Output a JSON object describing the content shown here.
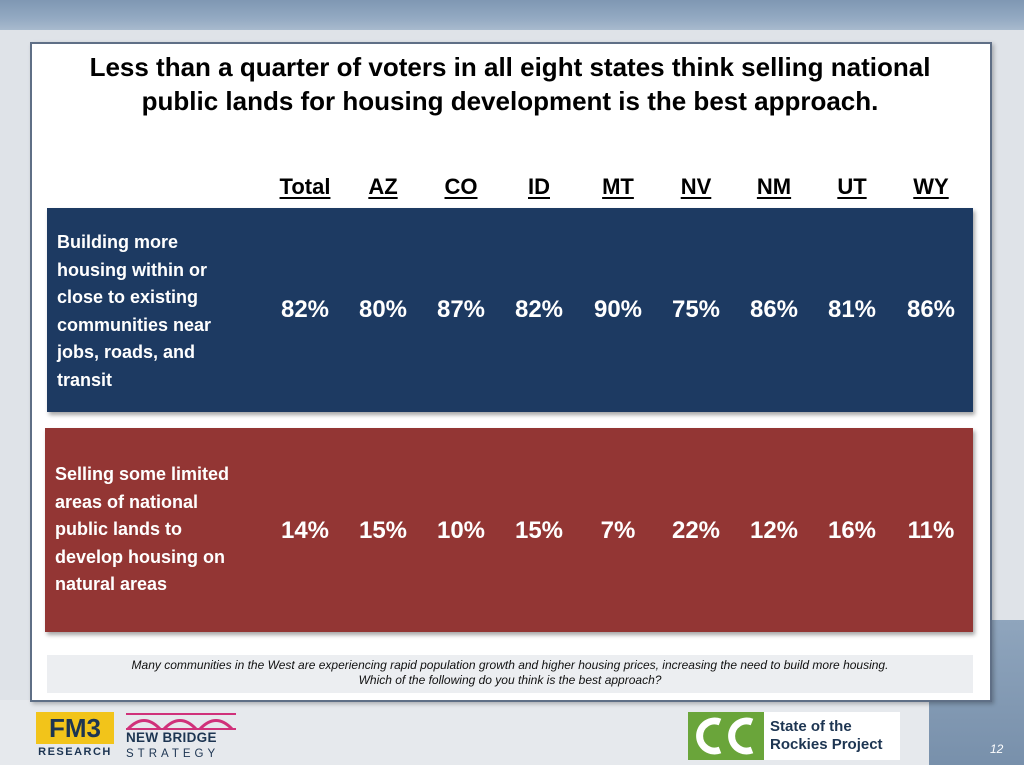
{
  "title": "Less than a quarter of voters in all eight states think selling national public lands for housing development is the best approach.",
  "columns": [
    "Total",
    "AZ",
    "CO",
    "ID",
    "MT",
    "NV",
    "NM",
    "UT",
    "WY"
  ],
  "rows": [
    {
      "label": "Building more housing within or close to existing communities near jobs, roads, and transit",
      "values": [
        "82%",
        "80%",
        "87%",
        "82%",
        "90%",
        "75%",
        "86%",
        "81%",
        "86%"
      ],
      "color": "#1d3a62"
    },
    {
      "label": "Selling some limited areas of national public lands to develop housing on natural areas",
      "values": [
        "14%",
        "15%",
        "10%",
        "15%",
        "7%",
        "22%",
        "12%",
        "16%",
        "11%"
      ],
      "color": "#933634"
    }
  ],
  "note": {
    "line1": "Many communities in the West are experiencing rapid population growth and higher housing prices, increasing the need to build more housing.",
    "line2": "Which of the following do you think is the best approach?"
  },
  "logos": {
    "fm3": {
      "main": "FM3",
      "sub": "RESEARCH",
      "color": "#f2c41a"
    },
    "new_bridge": {
      "main": "NEW BRIDGE",
      "sub": "STRATEGY",
      "arch_color": "#d0317a"
    },
    "state_rockies": {
      "mark": "CC",
      "name": "State of the Rockies Project",
      "color": "#6aa53a"
    }
  },
  "page_number": "12"
}
